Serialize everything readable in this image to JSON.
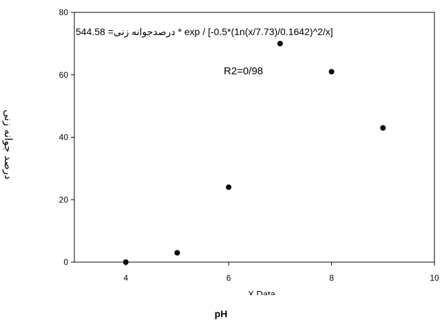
{
  "chart_data": {
    "type": "scatter",
    "title": "",
    "xlabel": "pH",
    "xlabel_hidden": "X Data",
    "ylabel": "درصد جوانه زنی",
    "xlim": [
      3,
      10
    ],
    "ylim": [
      0,
      80
    ],
    "xticks": [
      4,
      6,
      8,
      10
    ],
    "yticks": [
      0,
      20,
      40,
      60,
      80
    ],
    "grid": false,
    "legend": "none",
    "marker_color": "#000000",
    "series": [
      {
        "x": [
          4,
          5,
          6,
          7,
          8,
          9
        ],
        "y": [
          0,
          3,
          24,
          70,
          61,
          43
        ]
      }
    ],
    "annotations": {
      "equation": "درصدجوانه زنی= 544.58 * exp / [-0.5*(1n(x/7.73)/0.1642)^2/x]",
      "r2": "R2=0/98"
    }
  }
}
